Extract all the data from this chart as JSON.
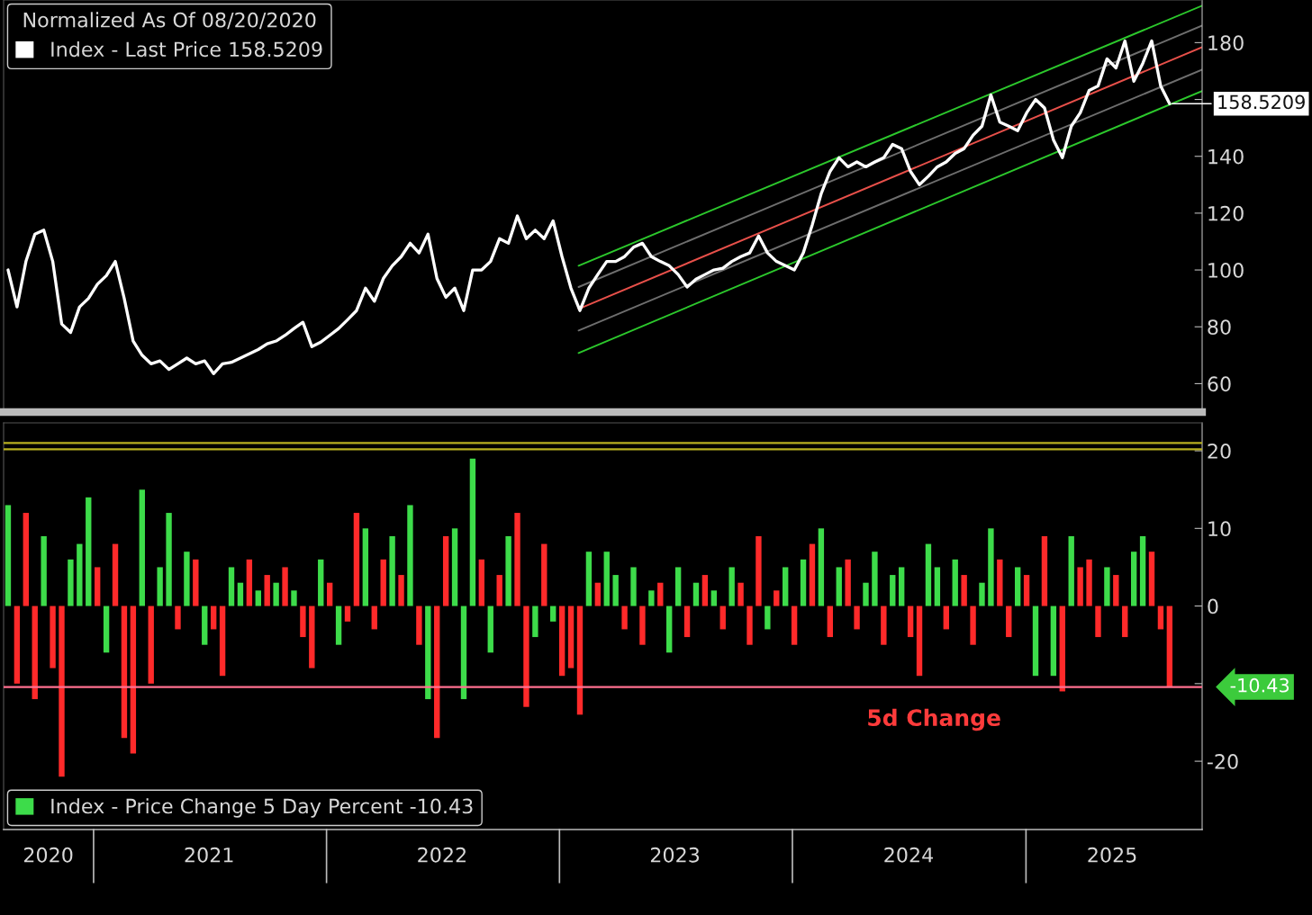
{
  "chart_data": [
    {
      "type": "line",
      "tick_labels": "y",
      "legend": "top left",
      "legend_title": "Normalized As Of 08/20/2020",
      "xlim": [
        "2020-08-13",
        "2025-10-04"
      ],
      "ylim": [
        50,
        195
      ],
      "yticks": [
        60,
        80,
        100,
        120,
        140,
        {
          "value": 160,
          "label": null
        },
        180
      ],
      "x": [
        "2020-08-20",
        "2020-09-03",
        "2020-09-17",
        "2020-10-01",
        "2020-10-15",
        "2020-10-29",
        "2020-11-12",
        "2020-11-26",
        "2020-12-10",
        "2020-12-24",
        "2021-01-07",
        "2021-01-21",
        "2021-02-04",
        "2021-02-18",
        "2021-03-04",
        "2021-03-18",
        "2021-04-01",
        "2021-04-15",
        "2021-04-29",
        "2021-05-13",
        "2021-05-27",
        "2021-06-10",
        "2021-06-24",
        "2021-07-08",
        "2021-07-22",
        "2021-08-05",
        "2021-08-19",
        "2021-09-02",
        "2021-09-16",
        "2021-09-30",
        "2021-10-14",
        "2021-10-28",
        "2021-11-11",
        "2021-11-25",
        "2021-12-09",
        "2021-12-23",
        "2022-01-06",
        "2022-01-20",
        "2022-02-03",
        "2022-02-17",
        "2022-03-03",
        "2022-03-17",
        "2022-03-31",
        "2022-04-14",
        "2022-04-28",
        "2022-05-12",
        "2022-05-26",
        "2022-06-09",
        "2022-06-23",
        "2022-07-07",
        "2022-07-21",
        "2022-08-04",
        "2022-08-18",
        "2022-09-01",
        "2022-09-15",
        "2022-09-29",
        "2022-10-13",
        "2022-10-27",
        "2022-11-10",
        "2022-11-24",
        "2022-12-08",
        "2022-12-22",
        "2023-01-05",
        "2023-01-19",
        "2023-02-02",
        "2023-02-16",
        "2023-03-02",
        "2023-03-16",
        "2023-03-30",
        "2023-04-13",
        "2023-04-27",
        "2023-05-11",
        "2023-05-25",
        "2023-06-08",
        "2023-06-22",
        "2023-07-06",
        "2023-07-20",
        "2023-08-03",
        "2023-08-17",
        "2023-08-31",
        "2023-09-14",
        "2023-09-28",
        "2023-10-12",
        "2023-10-26",
        "2023-11-09",
        "2023-11-23",
        "2023-12-07",
        "2023-12-21",
        "2024-01-04",
        "2024-01-18",
        "2024-02-01",
        "2024-02-15",
        "2024-02-29",
        "2024-03-14",
        "2024-03-28",
        "2024-04-11",
        "2024-04-25",
        "2024-05-09",
        "2024-05-23",
        "2024-06-06",
        "2024-06-20",
        "2024-07-04",
        "2024-07-18",
        "2024-08-01",
        "2024-08-15",
        "2024-08-29",
        "2024-09-12",
        "2024-09-26",
        "2024-10-10",
        "2024-10-24",
        "2024-11-07",
        "2024-11-21",
        "2024-12-05",
        "2024-12-19",
        "2025-01-02",
        "2025-01-16",
        "2025-01-30",
        "2025-02-13",
        "2025-02-27",
        "2025-03-13",
        "2025-03-27",
        "2025-04-10",
        "2025-04-24",
        "2025-05-08",
        "2025-05-22",
        "2025-06-05",
        "2025-06-19",
        "2025-07-03",
        "2025-07-17",
        "2025-07-31",
        "2025-08-14"
      ],
      "series": [
        {
          "name": "Index - Last Price 158.5209",
          "color": "#ffffff",
          "values": [
            100,
            87,
            103,
            112.6,
            114,
            103,
            81,
            78,
            87,
            90,
            95,
            98,
            103,
            90,
            75,
            70,
            67,
            68,
            65,
            67,
            69,
            67,
            68,
            63.5,
            67,
            67.5,
            69,
            70.5,
            72,
            74,
            75,
            77,
            79.4,
            81.6,
            73,
            74.6,
            77,
            79.4,
            82.5,
            85.7,
            93.6,
            89,
            97,
            101.5,
            104.7,
            109.4,
            106,
            112.6,
            97,
            90.4,
            93.6,
            85.7,
            100,
            100,
            103,
            111,
            109.4,
            119,
            111,
            114,
            111,
            117.3,
            104.7,
            93.6,
            85.7,
            93.6,
            98.4,
            103,
            103,
            104.7,
            108,
            109.4,
            104.7,
            103,
            101.5,
            98.4,
            94,
            96.8,
            98.4,
            100,
            100.6,
            103,
            104.7,
            106,
            112,
            106,
            103,
            101.5,
            100,
            106,
            115.8,
            126.8,
            134.7,
            139.5,
            136.3,
            138,
            136.3,
            138,
            139.5,
            144.2,
            142.7,
            134.7,
            130,
            133,
            136.3,
            138,
            141,
            142.7,
            147.4,
            150.6,
            161.6,
            152,
            150.6,
            149,
            155.3,
            160,
            157,
            145.8,
            139.5,
            150.6,
            155.3,
            163.2,
            164.8,
            174.3,
            171.1,
            180.6,
            166.4,
            172.7,
            180.6,
            164.8,
            158.5209
          ]
        },
        {
          "type": "line",
          "color": "#2cc82c",
          "x": [
            "2023-01-31",
            "2025-10-04"
          ],
          "values": [
            101.5,
            193
          ]
        },
        {
          "type": "line",
          "color": "#6e6e6e",
          "x": [
            "2023-01-31",
            "2025-10-04"
          ],
          "values": [
            94,
            186
          ]
        },
        {
          "type": "line",
          "color": "#e8504a",
          "x": [
            "2023-01-31",
            "2025-10-04"
          ],
          "values": [
            86.3,
            178.4
          ]
        },
        {
          "type": "line",
          "color": "#6e6e6e",
          "x": [
            "2023-01-31",
            "2025-10-04"
          ],
          "values": [
            78.7,
            170.5
          ]
        },
        {
          "type": "line",
          "color": "#2cc82c",
          "x": [
            "2023-01-31",
            "2025-10-04"
          ],
          "values": [
            70.8,
            163
          ]
        }
      ],
      "annotations": [
        {
          "text": "158.5209",
          "x": "2025-08-14",
          "y": 158.5209
        }
      ]
    },
    {
      "type": "bar",
      "legend": "bottom left",
      "xlim": [
        "2020-08-13",
        "2025-10-04"
      ],
      "xticks": [
        {
          "value": "2020-10-22",
          "label": "2020"
        },
        {
          "value": "2021-07-01",
          "label": "2021"
        },
        {
          "value": "2022-07-01",
          "label": "2022"
        },
        {
          "value": "2023-07-01",
          "label": "2023"
        },
        {
          "value": "2024-07-01",
          "label": "2024"
        },
        {
          "value": "2025-05-16",
          "label": "2025"
        }
      ],
      "ylim": [
        -28.8,
        23.6
      ],
      "yticks": [
        20,
        10,
        0,
        {
          "value": -10,
          "label": null
        },
        -20
      ],
      "x": [
        "2020-08-20",
        "2020-09-03",
        "2020-09-17",
        "2020-10-01",
        "2020-10-15",
        "2020-10-29",
        "2020-11-12",
        "2020-11-26",
        "2020-12-10",
        "2020-12-24",
        "2021-01-07",
        "2021-01-21",
        "2021-02-04",
        "2021-02-18",
        "2021-03-04",
        "2021-03-18",
        "2021-04-01",
        "2021-04-15",
        "2021-04-29",
        "2021-05-13",
        "2021-05-27",
        "2021-06-10",
        "2021-06-24",
        "2021-07-08",
        "2021-07-22",
        "2021-08-05",
        "2021-08-19",
        "2021-09-02",
        "2021-09-16",
        "2021-09-30",
        "2021-10-14",
        "2021-10-28",
        "2021-11-11",
        "2021-11-25",
        "2021-12-09",
        "2021-12-23",
        "2022-01-06",
        "2022-01-20",
        "2022-02-03",
        "2022-02-17",
        "2022-03-03",
        "2022-03-17",
        "2022-03-31",
        "2022-04-14",
        "2022-04-28",
        "2022-05-12",
        "2022-05-26",
        "2022-06-09",
        "2022-06-23",
        "2022-07-07",
        "2022-07-21",
        "2022-08-04",
        "2022-08-18",
        "2022-09-01",
        "2022-09-15",
        "2022-09-29",
        "2022-10-13",
        "2022-10-27",
        "2022-11-10",
        "2022-11-24",
        "2022-12-08",
        "2022-12-22",
        "2023-01-05",
        "2023-01-19",
        "2023-02-02",
        "2023-02-16",
        "2023-03-02",
        "2023-03-16",
        "2023-03-30",
        "2023-04-13",
        "2023-04-27",
        "2023-05-11",
        "2023-05-25",
        "2023-06-08",
        "2023-06-22",
        "2023-07-06",
        "2023-07-20",
        "2023-08-03",
        "2023-08-17",
        "2023-08-31",
        "2023-09-14",
        "2023-09-28",
        "2023-10-12",
        "2023-10-26",
        "2023-11-09",
        "2023-11-23",
        "2023-12-07",
        "2023-12-21",
        "2024-01-04",
        "2024-01-18",
        "2024-02-01",
        "2024-02-15",
        "2024-02-29",
        "2024-03-14",
        "2024-03-28",
        "2024-04-11",
        "2024-04-25",
        "2024-05-09",
        "2024-05-23",
        "2024-06-06",
        "2024-06-20",
        "2024-07-04",
        "2024-07-18",
        "2024-08-01",
        "2024-08-15",
        "2024-08-29",
        "2024-09-12",
        "2024-09-26",
        "2024-10-10",
        "2024-10-24",
        "2024-11-07",
        "2024-11-21",
        "2024-12-05",
        "2024-12-19",
        "2025-01-02",
        "2025-01-16",
        "2025-01-30",
        "2025-02-13",
        "2025-02-27",
        "2025-03-13",
        "2025-03-27",
        "2025-04-10",
        "2025-04-24",
        "2025-05-08",
        "2025-05-22",
        "2025-06-05",
        "2025-06-19",
        "2025-07-03",
        "2025-07-17",
        "2025-07-31",
        "2025-08-14"
      ],
      "series": [
        {
          "name": "Index - Price Change 5 Day Percent -10.43",
          "color": "#3ddc4a",
          "values": [
            13,
            -10,
            12,
            -12,
            9,
            -8,
            -22,
            6,
            8,
            14,
            5,
            -6,
            8,
            -17,
            -19,
            15,
            -10,
            5,
            12,
            -3,
            7,
            6,
            -5,
            -3,
            -9,
            5,
            3,
            6,
            2,
            4,
            3,
            5,
            2,
            -4,
            -8,
            6,
            3,
            -5,
            -2,
            12,
            10,
            -3,
            6,
            9,
            4,
            13,
            -5,
            -12,
            -17,
            9,
            10,
            -12,
            19,
            6,
            -6,
            4,
            9,
            12,
            -13,
            -4,
            8,
            -2,
            -9,
            -8,
            -14,
            7,
            3,
            7,
            4,
            -3,
            5,
            -5,
            2,
            3,
            -6,
            5,
            -4,
            3,
            4,
            2,
            -3,
            5,
            3,
            -5,
            9,
            -3,
            2,
            5,
            -5,
            6,
            8,
            10,
            -4,
            5,
            6,
            -3,
            3,
            7,
            -5,
            4,
            5,
            -4,
            -9,
            8,
            5,
            -3,
            6,
            4,
            -5,
            3,
            10,
            6,
            -4,
            5,
            4,
            -9,
            9,
            -9,
            -11,
            9,
            5,
            6,
            -4,
            5,
            4,
            -4,
            7,
            9,
            7,
            -3,
            -10.43
          ],
          "colors": [
            "#3ddc4a",
            "#ff2a2a",
            "#ff2a2a",
            "#ff2a2a",
            "#3ddc4a",
            "#ff2a2a",
            "#ff2a2a",
            "#3ddc4a",
            "#3ddc4a",
            "#3ddc4a",
            "#ff2a2a",
            "#3ddc4a",
            "#ff2a2a",
            "#ff2a2a",
            "#ff2a2a",
            "#3ddc4a",
            "#ff2a2a",
            "#3ddc4a",
            "#3ddc4a",
            "#ff2a2a",
            "#3ddc4a",
            "#ff2a2a",
            "#3ddc4a",
            "#ff2a2a",
            "#ff2a2a",
            "#3ddc4a",
            "#3ddc4a",
            "#ff2a2a",
            "#3ddc4a",
            "#ff2a2a",
            "#3ddc4a",
            "#ff2a2a",
            "#3ddc4a",
            "#ff2a2a",
            "#ff2a2a",
            "#3ddc4a",
            "#ff2a2a",
            "#3ddc4a",
            "#ff2a2a",
            "#ff2a2a",
            "#3ddc4a",
            "#ff2a2a",
            "#ff2a2a",
            "#3ddc4a",
            "#ff2a2a",
            "#3ddc4a",
            "#ff2a2a",
            "#3ddc4a",
            "#ff2a2a",
            "#ff2a2a",
            "#3ddc4a",
            "#3ddc4a",
            "#3ddc4a",
            "#ff2a2a",
            "#3ddc4a",
            "#ff2a2a",
            "#3ddc4a",
            "#ff2a2a",
            "#ff2a2a",
            "#3ddc4a",
            "#ff2a2a",
            "#3ddc4a",
            "#ff2a2a",
            "#ff2a2a",
            "#ff2a2a",
            "#3ddc4a",
            "#ff2a2a",
            "#3ddc4a",
            "#3ddc4a",
            "#ff2a2a",
            "#3ddc4a",
            "#ff2a2a",
            "#3ddc4a",
            "#ff2a2a",
            "#3ddc4a",
            "#3ddc4a",
            "#ff2a2a",
            "#3ddc4a",
            "#ff2a2a",
            "#3ddc4a",
            "#ff2a2a",
            "#3ddc4a",
            "#ff2a2a",
            "#ff2a2a",
            "#ff2a2a",
            "#3ddc4a",
            "#ff2a2a",
            "#3ddc4a",
            "#ff2a2a",
            "#3ddc4a",
            "#ff2a2a",
            "#3ddc4a",
            "#ff2a2a",
            "#3ddc4a",
            "#ff2a2a",
            "#ff2a2a",
            "#3ddc4a",
            "#3ddc4a",
            "#ff2a2a",
            "#3ddc4a",
            "#3ddc4a",
            "#ff2a2a",
            "#ff2a2a",
            "#3ddc4a",
            "#3ddc4a",
            "#ff2a2a",
            "#3ddc4a",
            "#ff2a2a",
            "#ff2a2a",
            "#3ddc4a",
            "#3ddc4a",
            "#ff2a2a",
            "#ff2a2a",
            "#3ddc4a",
            "#ff2a2a",
            "#3ddc4a",
            "#ff2a2a",
            "#3ddc4a",
            "#ff2a2a",
            "#3ddc4a",
            "#ff2a2a",
            "#ff2a2a",
            "#ff2a2a",
            "#3ddc4a",
            "#ff2a2a",
            "#ff2a2a",
            "#3ddc4a",
            "#3ddc4a",
            "#ff2a2a",
            "#ff2a2a",
            "#ff2a2a"
          ]
        }
      ],
      "ref_lines": [
        {
          "axis": "y",
          "value": 21.0,
          "color": "#b8b020"
        },
        {
          "axis": "y",
          "value": 20.2,
          "color": "#b8b020"
        },
        {
          "axis": "y",
          "value": -10.43,
          "label": "-10.43",
          "color": "#ff7090"
        }
      ],
      "annotations": [
        "5d Change"
      ]
    }
  ]
}
